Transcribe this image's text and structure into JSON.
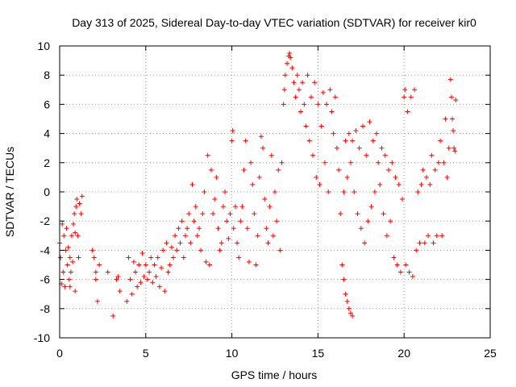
{
  "chart_data": {
    "type": "scatter",
    "title": "Day 313 of 2025, Sidereal Day-to-day VTEC variation (SDTVAR) for receiver kir0",
    "xlabel": "GPS time / hours",
    "ylabel": "SDTVAR / TECUs",
    "xlim": [
      0,
      25
    ],
    "ylim": [
      -10,
      10
    ],
    "x_ticks": [
      0,
      5,
      10,
      15,
      20,
      25
    ],
    "x_tick_labels": [
      "0",
      "5",
      "10",
      "15",
      "20",
      "25"
    ],
    "y_ticks": [
      -10,
      -8,
      -6,
      -4,
      -2,
      0,
      2,
      4,
      6,
      8,
      10
    ],
    "y_tick_labels": [
      "-10",
      "-8",
      "-6",
      "-4",
      "-2",
      "0",
      "2",
      "4",
      "6",
      "8",
      "10"
    ],
    "grid": true,
    "marker": "+",
    "series": [
      {
        "name": "SDTVAR",
        "color": "#ff0000",
        "points": [
          [
            0.0,
            -3.5
          ],
          [
            0.05,
            -4.5
          ],
          [
            0.1,
            -6.3
          ],
          [
            0.15,
            -2.2
          ],
          [
            0.2,
            -5.5
          ],
          [
            0.25,
            -3.0
          ],
          [
            0.3,
            -6.5
          ],
          [
            0.35,
            -4.0
          ],
          [
            0.4,
            -2.5
          ],
          [
            0.45,
            -5.0
          ],
          [
            0.5,
            -3.8
          ],
          [
            0.55,
            -6.0
          ],
          [
            0.6,
            -4.5
          ],
          [
            0.65,
            -5.5
          ],
          [
            0.7,
            -3.0
          ],
          [
            0.75,
            -4.8
          ],
          [
            0.8,
            -2.2
          ],
          [
            0.85,
            -1.5
          ],
          [
            0.9,
            -2.8
          ],
          [
            0.95,
            -1.0
          ],
          [
            1.0,
            -0.5
          ],
          [
            1.05,
            -3.0
          ],
          [
            1.1,
            -4.5
          ],
          [
            1.15,
            -0.8
          ],
          [
            1.25,
            -1.5
          ],
          [
            1.3,
            -0.3
          ],
          [
            0.9,
            -6.8
          ],
          [
            0.6,
            -6.5
          ],
          [
            1.9,
            -4.0
          ],
          [
            2.0,
            -4.5
          ],
          [
            2.1,
            -6.0
          ],
          [
            2.2,
            -7.5
          ],
          [
            2.3,
            -5.0
          ],
          [
            2.1,
            -5.5
          ],
          [
            2.8,
            -5.5
          ],
          [
            3.1,
            -8.5
          ],
          [
            3.3,
            -6.0
          ],
          [
            3.5,
            -6.8
          ],
          [
            3.4,
            -5.8
          ],
          [
            3.9,
            -7.5
          ],
          [
            4.0,
            -4.5
          ],
          [
            4.1,
            -6.0
          ],
          [
            4.2,
            -7.0
          ],
          [
            4.3,
            -4.8
          ],
          [
            4.4,
            -5.5
          ],
          [
            4.5,
            -6.5
          ],
          [
            4.6,
            -5.0
          ],
          [
            4.7,
            -6.2
          ],
          [
            4.8,
            -4.2
          ],
          [
            4.9,
            -5.8
          ],
          [
            5.0,
            -5.0
          ],
          [
            5.1,
            -6.0
          ],
          [
            5.2,
            -5.5
          ],
          [
            5.3,
            -4.5
          ],
          [
            5.4,
            -6.2
          ],
          [
            5.5,
            -5.0
          ],
          [
            5.6,
            -5.8
          ],
          [
            5.7,
            -4.5
          ],
          [
            5.8,
            -6.5
          ],
          [
            5.9,
            -5.2
          ],
          [
            6.0,
            -4.0
          ],
          [
            6.1,
            -6.8
          ],
          [
            6.2,
            -3.5
          ],
          [
            6.3,
            -5.5
          ],
          [
            6.4,
            -5.0
          ],
          [
            6.5,
            -3.8
          ],
          [
            6.6,
            -4.5
          ],
          [
            6.7,
            -3.0
          ],
          [
            6.8,
            -4.0
          ],
          [
            6.9,
            -2.5
          ],
          [
            7.0,
            -3.5
          ],
          [
            7.1,
            -2.0
          ],
          [
            7.2,
            -4.5
          ],
          [
            7.3,
            -3.0
          ],
          [
            7.4,
            -2.5
          ],
          [
            7.5,
            -1.5
          ],
          [
            7.6,
            -3.5
          ],
          [
            7.7,
            0.5
          ],
          [
            7.8,
            -2.0
          ],
          [
            7.9,
            -1.0
          ],
          [
            8.0,
            -3.0
          ],
          [
            8.1,
            -2.5
          ],
          [
            8.2,
            -4.0
          ],
          [
            8.3,
            -1.5
          ],
          [
            8.4,
            0.0
          ],
          [
            8.5,
            -4.8
          ],
          [
            8.6,
            2.5
          ],
          [
            8.7,
            -5.0
          ],
          [
            8.8,
            1.5
          ],
          [
            8.9,
            -1.5
          ],
          [
            9.0,
            -0.5
          ],
          [
            9.1,
            1.0
          ],
          [
            9.2,
            -2.5
          ],
          [
            9.3,
            -4.0
          ],
          [
            9.4,
            -3.5
          ],
          [
            9.5,
            -1.0
          ],
          [
            9.6,
            0.0
          ],
          [
            9.7,
            -2.0
          ],
          [
            9.8,
            -3.2
          ],
          [
            9.9,
            -1.5
          ],
          [
            10.0,
            3.5
          ],
          [
            10.05,
            4.2
          ],
          [
            10.1,
            -2.5
          ],
          [
            10.2,
            -1.0
          ],
          [
            10.3,
            -3.5
          ],
          [
            10.4,
            -4.5
          ],
          [
            10.5,
            -2.0
          ],
          [
            10.6,
            -1.0
          ],
          [
            10.7,
            1.5
          ],
          [
            10.8,
            3.5
          ],
          [
            10.9,
            -2.5
          ],
          [
            11.0,
            -4.8
          ],
          [
            11.1,
            2.0
          ],
          [
            11.2,
            0.5
          ],
          [
            11.3,
            -1.5
          ],
          [
            11.4,
            -5.0
          ],
          [
            11.5,
            -3.0
          ],
          [
            11.6,
            1.0
          ],
          [
            11.7,
            3.8
          ],
          [
            11.8,
            3.0
          ],
          [
            11.9,
            -0.5
          ],
          [
            12.0,
            -2.5
          ],
          [
            12.1,
            -3.5
          ],
          [
            12.2,
            -1.0
          ],
          [
            12.3,
            2.5
          ],
          [
            12.4,
            -3.0
          ],
          [
            12.5,
            0.0
          ],
          [
            12.6,
            -2.0
          ],
          [
            12.7,
            1.5
          ],
          [
            12.8,
            -4.0
          ],
          [
            12.9,
            2.0
          ],
          [
            13.0,
            6.0
          ],
          [
            13.05,
            7.0
          ],
          [
            13.1,
            8.0
          ],
          [
            13.2,
            8.8
          ],
          [
            13.3,
            9.3
          ],
          [
            13.35,
            9.5
          ],
          [
            13.4,
            9.2
          ],
          [
            13.5,
            8.5
          ],
          [
            13.6,
            7.5
          ],
          [
            13.7,
            6.5
          ],
          [
            13.8,
            8.0
          ],
          [
            13.9,
            7.0
          ],
          [
            14.0,
            5.5
          ],
          [
            14.1,
            7.5
          ],
          [
            14.2,
            6.0
          ],
          [
            14.3,
            4.5
          ],
          [
            14.4,
            8.0
          ],
          [
            14.5,
            3.5
          ],
          [
            14.6,
            6.5
          ],
          [
            14.7,
            2.5
          ],
          [
            14.8,
            7.5
          ],
          [
            14.9,
            1.0
          ],
          [
            15.0,
            6.0
          ],
          [
            15.1,
            0.5
          ],
          [
            15.2,
            4.5
          ],
          [
            15.3,
            6.8
          ],
          [
            15.4,
            2.0
          ],
          [
            15.5,
            6.0
          ],
          [
            15.6,
            0.0
          ],
          [
            15.7,
            7.0
          ],
          [
            15.8,
            5.5
          ],
          [
            15.9,
            4.0
          ],
          [
            16.0,
            6.5
          ],
          [
            16.1,
            3.0
          ],
          [
            16.2,
            1.5
          ],
          [
            16.3,
            -1.5
          ],
          [
            16.4,
            -5.0
          ],
          [
            16.5,
            -6.0
          ],
          [
            16.6,
            -7.0
          ],
          [
            16.7,
            -7.5
          ],
          [
            16.8,
            -8.0
          ],
          [
            16.9,
            -8.3
          ],
          [
            17.0,
            -8.5
          ],
          [
            16.5,
            0.0
          ],
          [
            16.6,
            3.5
          ],
          [
            16.7,
            1.0
          ],
          [
            16.8,
            4.0
          ],
          [
            16.9,
            2.0
          ],
          [
            17.0,
            3.5
          ],
          [
            17.1,
            0.0
          ],
          [
            17.2,
            4.2
          ],
          [
            17.3,
            -1.5
          ],
          [
            17.4,
            3.0
          ],
          [
            17.5,
            -2.5
          ],
          [
            17.6,
            4.5
          ],
          [
            17.7,
            -3.5
          ],
          [
            17.8,
            2.5
          ],
          [
            17.9,
            -2.0
          ],
          [
            18.0,
            4.8
          ],
          [
            18.1,
            -1.0
          ],
          [
            18.2,
            3.5
          ],
          [
            18.3,
            0.0
          ],
          [
            18.4,
            4.0
          ],
          [
            18.5,
            2.0
          ],
          [
            18.6,
            0.5
          ],
          [
            18.7,
            3.0
          ],
          [
            18.8,
            -1.5
          ],
          [
            18.9,
            2.5
          ],
          [
            19.0,
            -3.0
          ],
          [
            19.1,
            1.5
          ],
          [
            19.2,
            -2.0
          ],
          [
            19.3,
            2.0
          ],
          [
            19.4,
            -4.5
          ],
          [
            19.5,
            1.0
          ],
          [
            19.6,
            -5.0
          ],
          [
            19.7,
            0.5
          ],
          [
            19.8,
            -5.5
          ],
          [
            19.9,
            -0.5
          ],
          [
            20.0,
            6.5
          ],
          [
            20.05,
            7.0
          ],
          [
            20.1,
            -5.0
          ],
          [
            20.2,
            5.5
          ],
          [
            20.3,
            -5.5
          ],
          [
            20.4,
            6.5
          ],
          [
            20.5,
            -5.8
          ],
          [
            20.6,
            7.0
          ],
          [
            20.7,
            -4.0
          ],
          [
            20.8,
            0.0
          ],
          [
            20.9,
            -3.5
          ],
          [
            21.0,
            0.5
          ],
          [
            21.1,
            1.5
          ],
          [
            21.2,
            -3.5
          ],
          [
            21.3,
            1.0
          ],
          [
            21.4,
            -3.0
          ],
          [
            21.5,
            0.5
          ],
          [
            21.6,
            2.5
          ],
          [
            21.7,
            -3.5
          ],
          [
            21.8,
            1.5
          ],
          [
            21.9,
            -3.0
          ],
          [
            22.0,
            2.0
          ],
          [
            22.1,
            3.5
          ],
          [
            22.2,
            -3.0
          ],
          [
            22.3,
            2.0
          ],
          [
            22.4,
            5.0
          ],
          [
            22.5,
            1.0
          ],
          [
            22.6,
            3.0
          ],
          [
            22.7,
            7.7
          ],
          [
            22.75,
            6.5
          ],
          [
            22.8,
            5.0
          ],
          [
            22.85,
            4.2
          ],
          [
            22.9,
            3.0
          ],
          [
            23.0,
            6.3
          ],
          [
            22.95,
            2.8
          ]
        ]
      }
    ]
  }
}
